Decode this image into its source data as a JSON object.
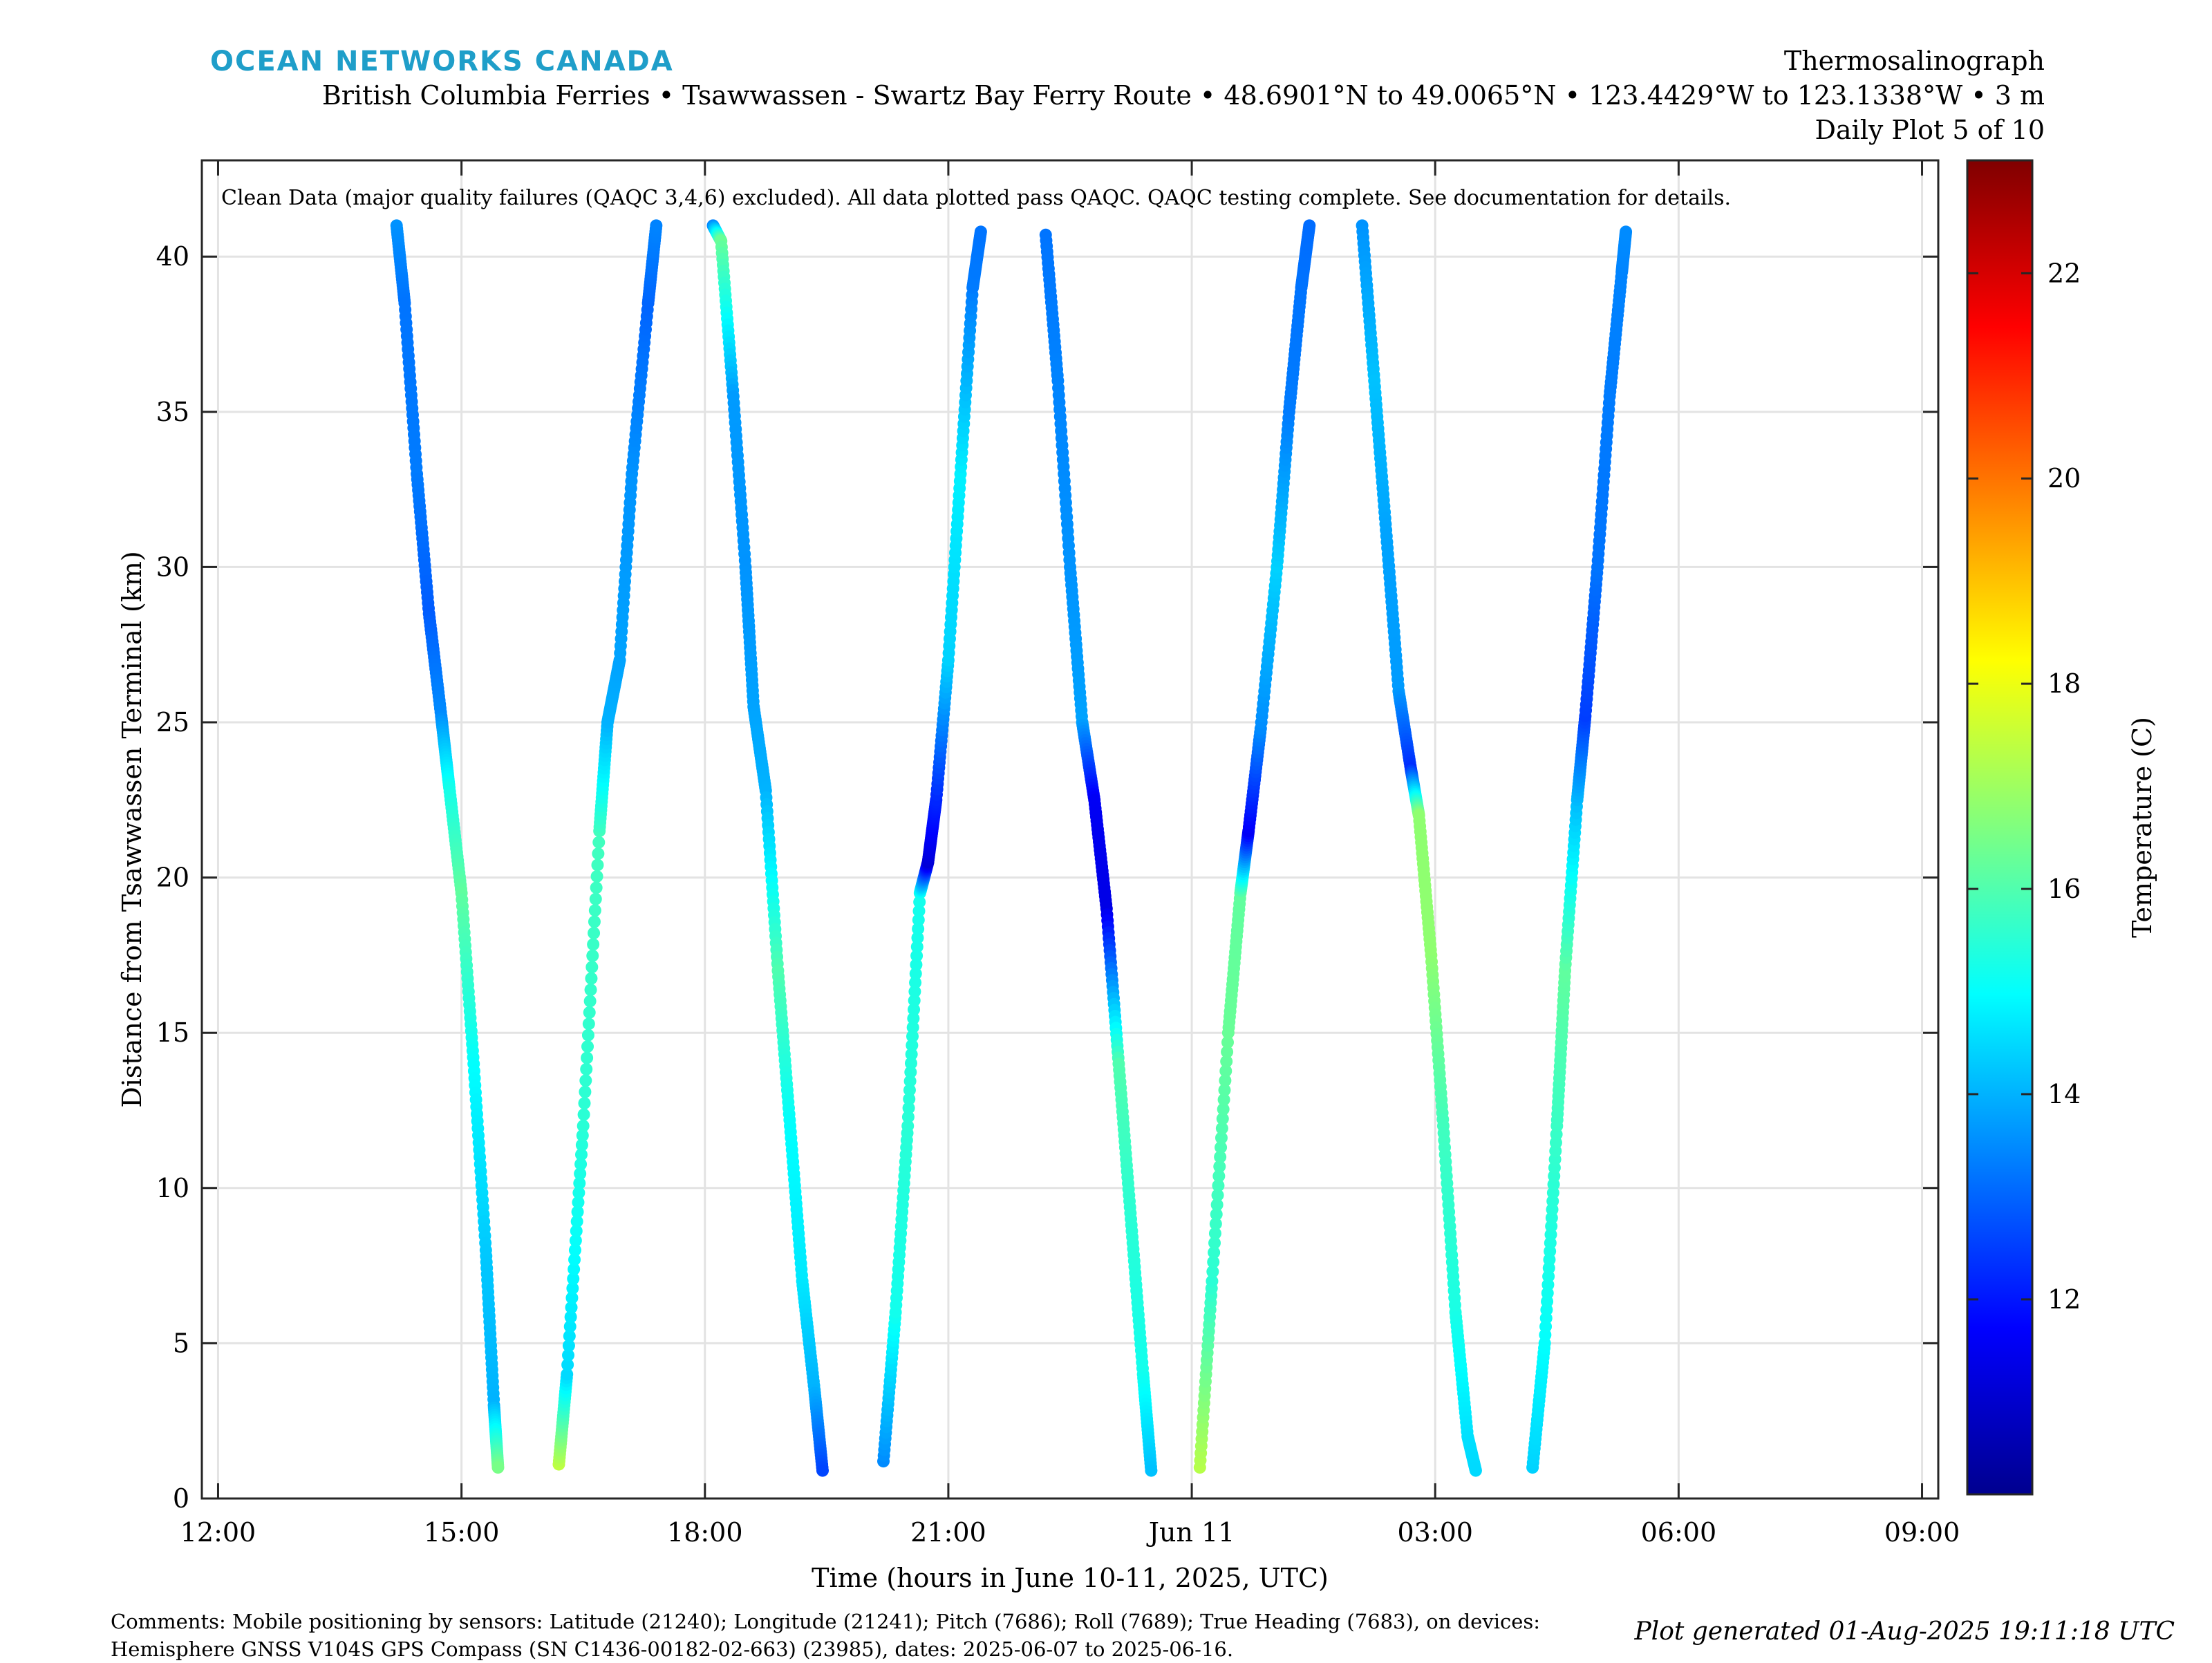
{
  "header": {
    "brand": "OCEAN NETWORKS CANADA",
    "title": "Thermosalinograph",
    "subtitle": "British Columbia Ferries • Tsawwassen - Swartz Bay Ferry Route • 48.6901°N to 49.0065°N • 123.4429°W to 123.1338°W • 3 m",
    "plot_index": "Daily Plot 5 of 10"
  },
  "footer": {
    "comments_line1": "Comments: Mobile positioning by sensors: Latitude (21240); Longitude (21241); Pitch (7686); Roll (7689); True Heading (7683), on devices:",
    "comments_line2": "Hemisphere GNSS V104S GPS Compass (SN C1436-00182-02-663) (23985), dates: 2025-06-07 to 2025-06-16.",
    "generated": "Plot generated 01-Aug-2025 19:11:18 UTC"
  },
  "chart_data": {
    "type": "scatter",
    "annotation": "Clean Data (major quality failures (QAQC 3,4,6) excluded). All data plotted pass QAQC. QAQC testing complete. See documentation for details.",
    "xlabel": "Time (hours in June 10-11, 2025, UTC)",
    "ylabel": "Distance from Tsawwassen Terminal (km)",
    "x_unit": "hours since 2025-06-10 00:00 UTC",
    "xlim": [
      11.8,
      33.2
    ],
    "ylim": [
      0,
      43.1
    ],
    "x_ticks": [
      {
        "value": 12,
        "label": "12:00"
      },
      {
        "value": 15,
        "label": "15:00"
      },
      {
        "value": 18,
        "label": "18:00"
      },
      {
        "value": 21,
        "label": "21:00"
      },
      {
        "value": 24,
        "label": "Jun 11"
      },
      {
        "value": 27,
        "label": "03:00"
      },
      {
        "value": 30,
        "label": "06:00"
      },
      {
        "value": 33,
        "label": "09:00"
      }
    ],
    "y_ticks": [
      0,
      5,
      10,
      15,
      20,
      25,
      30,
      35,
      40
    ],
    "grid": true,
    "colorbar": {
      "label": "Temperature (C)",
      "range": [
        10.1,
        23.1
      ],
      "ticks": [
        12,
        14,
        16,
        18,
        20,
        22
      ],
      "colormap": "jet"
    },
    "series": [
      {
        "points": [
          [
            14.2,
            41.0,
            13.6
          ],
          [
            14.3,
            38.5,
            13.2
          ],
          [
            14.45,
            33.0,
            13.3
          ],
          [
            14.6,
            28.5,
            12.9
          ],
          [
            14.75,
            25.2,
            13.5
          ],
          [
            14.85,
            22.9,
            15.2
          ],
          [
            15.0,
            19.5,
            16.2
          ],
          [
            15.15,
            14.0,
            15.0
          ],
          [
            15.3,
            8.0,
            14.3
          ],
          [
            15.4,
            3.0,
            14.0
          ],
          [
            15.45,
            1.0,
            16.5
          ]
        ]
      },
      {
        "points": [
          [
            16.2,
            1.1,
            17.4
          ],
          [
            16.3,
            4.0,
            14.5
          ],
          [
            16.5,
            12.0,
            15.5
          ],
          [
            16.7,
            21.5,
            15.8
          ],
          [
            16.8,
            25.0,
            14.0
          ],
          [
            16.95,
            27.0,
            13.8
          ],
          [
            17.1,
            33.0,
            13.6
          ],
          [
            17.3,
            38.5,
            13.0
          ],
          [
            17.4,
            41.0,
            13.4
          ]
        ]
      },
      {
        "points": [
          [
            18.1,
            41.0,
            13.4
          ],
          [
            18.2,
            40.5,
            16.3
          ],
          [
            18.35,
            35.5,
            13.7
          ],
          [
            18.5,
            30.0,
            13.6
          ],
          [
            18.6,
            25.5,
            13.8
          ],
          [
            18.75,
            22.8,
            14.0
          ],
          [
            18.9,
            17.0,
            16.0
          ],
          [
            19.05,
            12.0,
            15.0
          ],
          [
            19.2,
            7.0,
            14.7
          ],
          [
            19.35,
            3.5,
            14.0
          ],
          [
            19.45,
            0.9,
            12.6
          ]
        ]
      },
      {
        "points": [
          [
            20.2,
            1.2,
            13.5
          ],
          [
            20.35,
            6.0,
            15.2
          ],
          [
            20.5,
            12.0,
            15.5
          ],
          [
            20.65,
            19.5,
            15.2
          ],
          [
            20.75,
            20.5,
            11.2
          ],
          [
            20.85,
            22.5,
            12.2
          ],
          [
            21.0,
            27.0,
            14.4
          ],
          [
            21.15,
            33.0,
            14.8
          ],
          [
            21.3,
            39.0,
            13.3
          ],
          [
            21.4,
            40.8,
            13.2
          ]
        ]
      },
      {
        "points": [
          [
            22.2,
            40.7,
            13.2
          ],
          [
            22.35,
            36.0,
            13.4
          ],
          [
            22.5,
            30.0,
            13.6
          ],
          [
            22.65,
            25.0,
            13.8
          ],
          [
            22.8,
            22.5,
            11.6
          ],
          [
            22.95,
            19.0,
            11.4
          ],
          [
            23.1,
            14.0,
            16.0
          ],
          [
            23.25,
            9.0,
            15.5
          ],
          [
            23.4,
            4.0,
            15.2
          ],
          [
            23.5,
            0.9,
            14.2
          ]
        ]
      },
      {
        "points": [
          [
            24.1,
            1.0,
            17.3
          ],
          [
            24.25,
            7.0,
            15.5
          ],
          [
            24.45,
            15.0,
            16.3
          ],
          [
            24.6,
            19.5,
            16.2
          ],
          [
            24.7,
            21.5,
            11.6
          ],
          [
            24.85,
            24.8,
            13.5
          ],
          [
            25.05,
            30.0,
            14.4
          ],
          [
            25.2,
            35.0,
            13.3
          ],
          [
            25.35,
            39.0,
            13.2
          ],
          [
            25.45,
            41.0,
            13.1
          ]
        ]
      },
      {
        "points": [
          [
            26.1,
            41.0,
            13.6
          ],
          [
            26.25,
            36.0,
            14.2
          ],
          [
            26.4,
            31.0,
            13.8
          ],
          [
            26.55,
            26.0,
            13.7
          ],
          [
            26.7,
            23.5,
            12.3
          ],
          [
            26.8,
            22.0,
            16.8
          ],
          [
            26.95,
            17.5,
            16.8
          ],
          [
            27.1,
            12.0,
            15.8
          ],
          [
            27.25,
            6.0,
            15.3
          ],
          [
            27.4,
            2.0,
            14.6
          ],
          [
            27.5,
            0.9,
            14.5
          ]
        ]
      },
      {
        "points": [
          [
            28.2,
            1.0,
            14.4
          ],
          [
            28.35,
            5.0,
            15.0
          ],
          [
            28.5,
            12.0,
            15.7
          ],
          [
            28.6,
            17.0,
            16.2
          ],
          [
            28.75,
            22.5,
            14.1
          ],
          [
            28.85,
            25.2,
            12.5
          ],
          [
            29.0,
            30.0,
            13.2
          ],
          [
            29.15,
            35.5,
            13.3
          ],
          [
            29.3,
            39.5,
            13.4
          ],
          [
            29.35,
            40.8,
            13.5
          ]
        ]
      }
    ]
  }
}
